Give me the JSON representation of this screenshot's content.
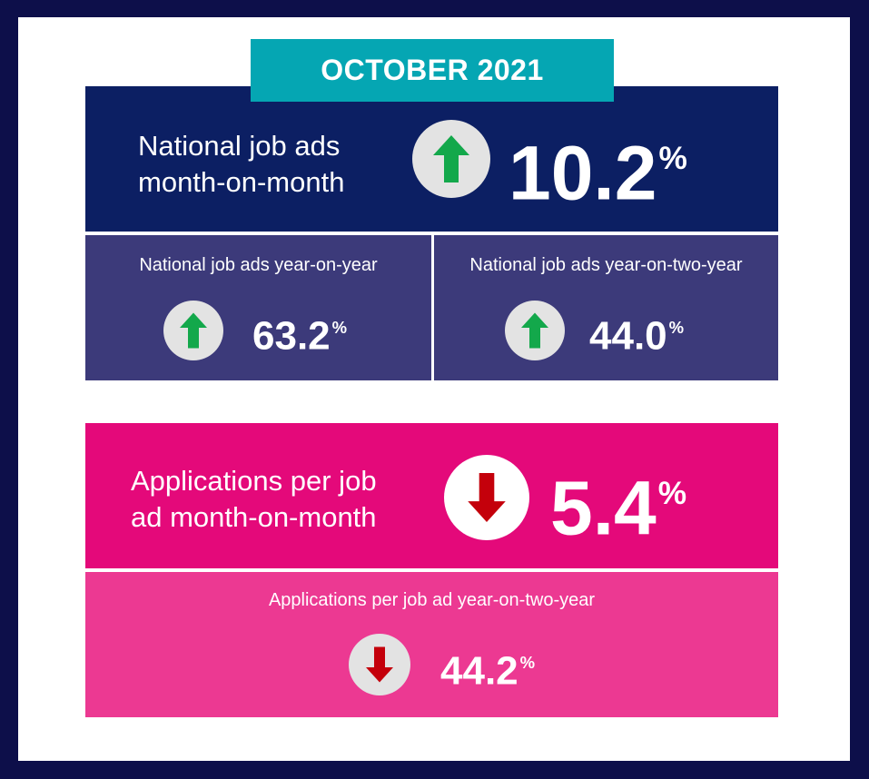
{
  "header": {
    "title": "OCTOBER 2021"
  },
  "metrics": {
    "national_mom": {
      "label_line1": "National job ads",
      "label_line2": "month-on-month",
      "value": "10.2",
      "unit": "%",
      "direction": "up",
      "icon": "up-arrow-icon"
    },
    "national_yoy": {
      "label": "National job ads year-on-year",
      "value": "63.2",
      "unit": "%",
      "direction": "up",
      "icon": "up-arrow-icon"
    },
    "national_yo2y": {
      "label": "National job ads year-on-two-year",
      "value": "44.0",
      "unit": "%",
      "direction": "up",
      "icon": "up-arrow-icon"
    },
    "applications_mom": {
      "label_line1": "Applications per job",
      "label_line2": "ad month-on-month",
      "value": "5.4",
      "unit": "%",
      "direction": "down",
      "icon": "down-arrow-icon"
    },
    "applications_yo2y": {
      "label": "Applications per job ad year-on-two-year",
      "value": "44.2",
      "unit": "%",
      "direction": "down",
      "icon": "down-arrow-icon"
    }
  },
  "colors": {
    "frame": "#0d0f4a",
    "header": "#05a6b3",
    "navy_panel": "#0c1f63",
    "purple_panel": "#3c3a7a",
    "magenta_panel": "#e4097a",
    "pink_panel": "#ec3992",
    "up_arrow": "#13a84b",
    "down_arrow": "#c4000b"
  }
}
